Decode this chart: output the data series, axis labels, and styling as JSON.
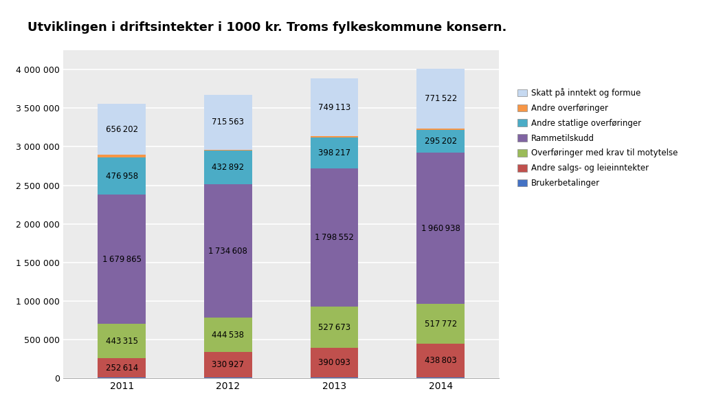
{
  "title": "Utviklingen i driftsintekter i 1000 kr. Troms fylkeskommune konsern.",
  "years": [
    "2011",
    "2012",
    "2013",
    "2014"
  ],
  "series": [
    {
      "label": "Brukerbetalinger",
      "color": "#4472C4",
      "values": [
        5000,
        5000,
        5000,
        5000
      ]
    },
    {
      "label": "Andre salgs- og leieinntekter",
      "color": "#C0504D",
      "values": [
        252614,
        330927,
        390093,
        438803
      ]
    },
    {
      "label": "Overføringer med krav til motytelse",
      "color": "#9BBB59",
      "values": [
        443315,
        444538,
        527673,
        517772
      ]
    },
    {
      "label": "Rammetilskudd",
      "color": "#8064A2",
      "values": [
        1679865,
        1734608,
        1798552,
        1960938
      ]
    },
    {
      "label": "Andre statlige overføringer",
      "color": "#4BACC6",
      "values": [
        476958,
        432892,
        398217,
        295202
      ]
    },
    {
      "label": "Andre overføringer",
      "color": "#F79646",
      "values": [
        41000,
        11000,
        15000,
        20000
      ]
    },
    {
      "label": "Skatt på inntekt og formue",
      "color": "#C6D9F1",
      "values": [
        656202,
        715563,
        749113,
        771522
      ]
    }
  ],
  "labeled_series": [
    "Andre salgs- og leieinntekter",
    "Overføringer med krav til motytelse",
    "Rammetilskudd",
    "Andre statlige overføringer",
    "Skatt på inntekt og formue"
  ],
  "ylim": [
    0,
    4250000
  ],
  "yticks": [
    0,
    500000,
    1000000,
    1500000,
    2000000,
    2500000,
    3000000,
    3500000,
    4000000
  ],
  "ytick_labels": [
    "0",
    "500 000",
    "1 000 000",
    "1 500 000",
    "2 000 000",
    "2 500 000",
    "3 000 000",
    "3 500 000",
    "4 000 000"
  ],
  "background_color": "#EBEBEB",
  "grid_color": "#FFFFFF",
  "bar_width": 0.45,
  "label_fontsize": 8.5,
  "title_fontsize": 13,
  "legend_order": [
    "Skatt på inntekt og formue",
    "Andre overføringer",
    "Andre statlige overføringer",
    "Rammetilskudd",
    "Overføringer med krav til motytelse",
    "Andre salgs- og leieinntekter",
    "Brukerbetalinger"
  ]
}
